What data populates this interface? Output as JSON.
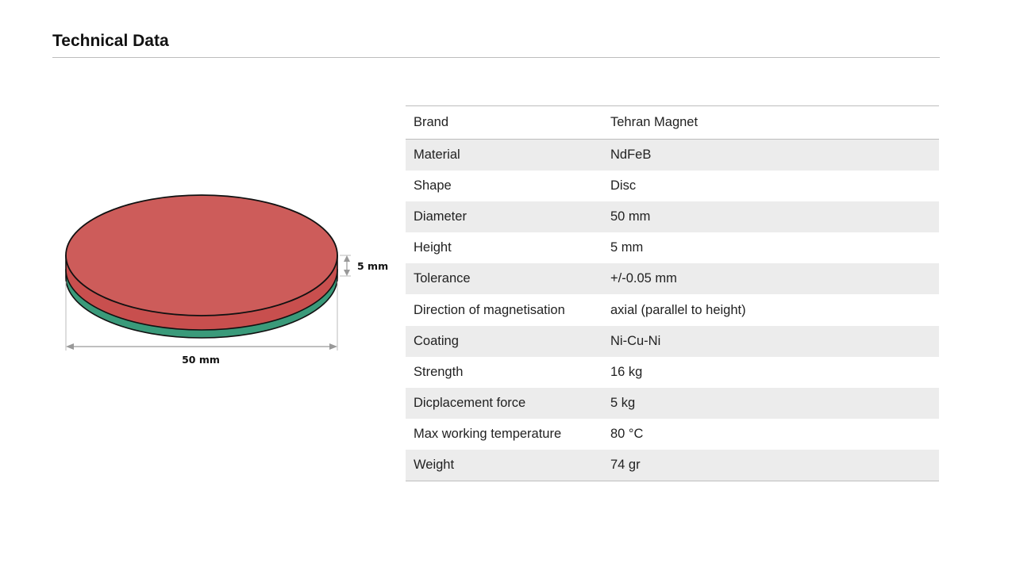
{
  "page": {
    "title": "Technical Data"
  },
  "diagram": {
    "height_label": "5 mm",
    "diameter_label": "50 mm",
    "colors": {
      "top_face": "#cd5c5a",
      "north_band": "#c84f4e",
      "south_band": "#3a9a7a"
    }
  },
  "specs": [
    {
      "label": "Brand",
      "value": "Tehran Magnet"
    },
    {
      "label": "Material",
      "value": "NdFeB"
    },
    {
      "label": "Shape",
      "value": "Disc"
    },
    {
      "label": "Diameter",
      "value": "50 mm"
    },
    {
      "label": "Height",
      "value": "5 mm"
    },
    {
      "label": "Tolerance",
      "value": "+/-0.05 mm"
    },
    {
      "label": "Direction of magnetisation",
      "value": "axial (parallel to height)"
    },
    {
      "label": "Coating",
      "value": "Ni-Cu-Ni"
    },
    {
      "label": "Strength",
      "value": "16 kg"
    },
    {
      "label": "Dicplacement force",
      "value": "5 kg"
    },
    {
      "label": "Max working temperature",
      "value": "80 °C"
    },
    {
      "label": "Weight",
      "value": "74 gr"
    }
  ]
}
